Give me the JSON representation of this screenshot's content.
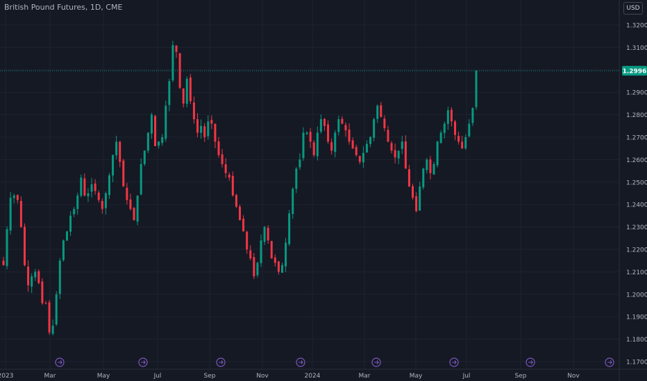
{
  "header": {
    "symbol_title": "British Pound Futures, 1D, CME",
    "currency_button": "USD"
  },
  "price_axis": {
    "ticks": [
      "1.3200",
      "1.3100",
      "1.3000",
      "1.2900",
      "1.2800",
      "1.2700",
      "1.2600",
      "1.2500",
      "1.2400",
      "1.2300",
      "1.2200",
      "1.2100",
      "1.2000",
      "1.1900",
      "1.1800",
      "1.1700"
    ]
  },
  "last_price": {
    "label": "1.2996",
    "value": 1.2996,
    "color": "#089981"
  },
  "time_axis": {
    "labels": [
      "2023",
      "Mar",
      "May",
      "Jul",
      "Sep",
      "Nov",
      "2024",
      "Mar",
      "May",
      "Jul",
      "Sep",
      "Nov"
    ]
  },
  "event_markers": {
    "icon": "forward-arrow-circle-icon",
    "count": 8,
    "color": "#7e57c2"
  },
  "colors": {
    "background": "#151924",
    "grid": "#1f2330",
    "up": "#089981",
    "down": "#f23645",
    "axis_text": "#b2b5be"
  },
  "chart_data": {
    "type": "candlestick",
    "title": "British Pound Futures, 1D, CME",
    "ylim": [
      1.17,
      1.32
    ],
    "x_labels": [
      "2023",
      "Mar",
      "May",
      "Jul",
      "Sep",
      "Nov",
      "2024",
      "Mar",
      "May",
      "Jul",
      "Sep",
      "Nov"
    ],
    "series": [
      {
        "name": "British Pound Futures",
        "close": [
          1.213,
          1.229,
          1.243,
          1.244,
          1.242,
          1.23,
          1.213,
          1.204,
          1.208,
          1.21,
          1.205,
          1.196,
          1.196,
          1.183,
          1.186,
          1.2,
          1.215,
          1.224,
          1.228,
          1.235,
          1.238,
          1.244,
          1.252,
          1.244,
          1.245,
          1.249,
          1.246,
          1.242,
          1.238,
          1.245,
          1.253,
          1.262,
          1.268,
          1.259,
          1.248,
          1.242,
          1.238,
          1.233,
          1.244,
          1.258,
          1.264,
          1.272,
          1.28,
          1.266,
          1.268,
          1.27,
          1.284,
          1.295,
          1.311,
          1.308,
          1.292,
          1.285,
          1.296,
          1.286,
          1.278,
          1.272,
          1.275,
          1.27,
          1.277,
          1.276,
          1.268,
          1.262,
          1.258,
          1.254,
          1.252,
          1.244,
          1.239,
          1.233,
          1.228,
          1.22,
          1.216,
          1.208,
          1.214,
          1.224,
          1.23,
          1.224,
          1.216,
          1.214,
          1.21,
          1.213,
          1.223,
          1.236,
          1.247,
          1.256,
          1.26,
          1.272,
          1.272,
          1.268,
          1.262,
          1.272,
          1.278,
          1.275,
          1.268,
          1.264,
          1.272,
          1.278,
          1.276,
          1.273,
          1.268,
          1.265,
          1.262,
          1.259,
          1.263,
          1.267,
          1.27,
          1.278,
          1.284,
          1.279,
          1.274,
          1.268,
          1.264,
          1.261,
          1.264,
          1.268,
          1.256,
          1.248,
          1.243,
          1.237,
          1.248,
          1.256,
          1.26,
          1.254,
          1.258,
          1.268,
          1.272,
          1.276,
          1.282,
          1.277,
          1.271,
          1.268,
          1.265,
          1.27,
          1.276,
          1.283,
          1.2996
        ]
      }
    ]
  }
}
